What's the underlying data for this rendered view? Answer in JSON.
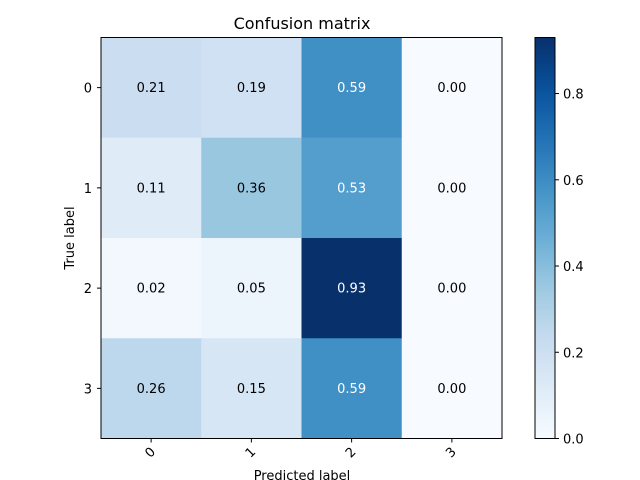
{
  "chart_data": {
    "type": "heatmap",
    "title": "Confusion matrix",
    "xlabel": "Predicted label",
    "ylabel": "True label",
    "x_categories": [
      "0",
      "1",
      "2",
      "3"
    ],
    "y_categories": [
      "0",
      "1",
      "2",
      "3"
    ],
    "values": [
      [
        0.21,
        0.19,
        0.59,
        0.0
      ],
      [
        0.11,
        0.36,
        0.53,
        0.0
      ],
      [
        0.02,
        0.05,
        0.93,
        0.0
      ],
      [
        0.26,
        0.15,
        0.59,
        0.0
      ]
    ],
    "value_labels": [
      [
        "0.21",
        "0.19",
        "0.59",
        "0.00"
      ],
      [
        "0.11",
        "0.36",
        "0.53",
        "0.00"
      ],
      [
        "0.02",
        "0.05",
        "0.93",
        "0.00"
      ],
      [
        "0.26",
        "0.15",
        "0.59",
        "0.00"
      ]
    ],
    "colormap": "Blues",
    "color_range": [
      0.0,
      0.93
    ],
    "colorbar_ticks": [
      "0.0",
      "0.2",
      "0.4",
      "0.6",
      "0.8"
    ],
    "colorbar_tick_values": [
      0.0,
      0.2,
      0.4,
      0.6,
      0.8
    ],
    "colors": {
      "low": "#f7fbff",
      "high": "#08306b"
    }
  }
}
